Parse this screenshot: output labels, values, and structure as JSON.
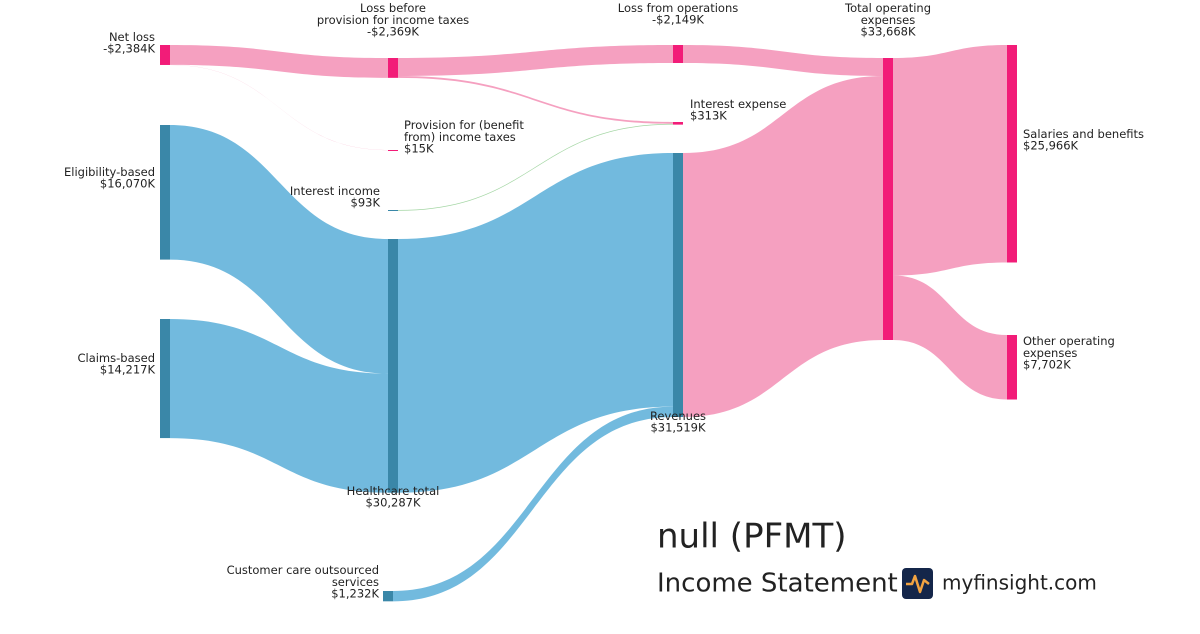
{
  "chart_data": {
    "type": "sankey",
    "title": "null (PFMT)",
    "subtitle": "Income Statement",
    "brand": "myfinsight.com",
    "nodes": [
      {
        "name": "Net loss",
        "value": -2384,
        "value_label": "-$2,384K",
        "color": "#f21c78"
      },
      {
        "name": "Eligibility-based",
        "value": 16070,
        "value_label": "$16,070K",
        "color": "#3a87a8"
      },
      {
        "name": "Claims-based",
        "value": 14217,
        "value_label": "$14,217K",
        "color": "#3a87a8"
      },
      {
        "name": "Loss before provision for income taxes",
        "value": -2369,
        "value_label": "-$2,369K",
        "color": "#f21c78"
      },
      {
        "name": "Provision for (benefit from) income taxes",
        "value": 15,
        "value_label": "$15K",
        "color": "#f21c78"
      },
      {
        "name": "Interest income",
        "value": 93,
        "value_label": "$93K",
        "color": "#3a87a8"
      },
      {
        "name": "Healthcare total",
        "value": 30287,
        "value_label": "$30,287K",
        "color": "#3a87a8"
      },
      {
        "name": "Customer care outsourced services",
        "value": 1232,
        "value_label": "$1,232K",
        "color": "#3a87a8"
      },
      {
        "name": "Loss from operations",
        "value": -2149,
        "value_label": "-$2,149K",
        "color": "#f21c78"
      },
      {
        "name": "Interest expense",
        "value": 313,
        "value_label": "$313K",
        "color": "#f21c78"
      },
      {
        "name": "Revenues",
        "value": 31519,
        "value_label": "$31,519K",
        "color": "#3a87a8"
      },
      {
        "name": "Total operating expenses",
        "value": 33668,
        "value_label": "$33,668K",
        "color": "#f21c78"
      },
      {
        "name": "Salaries and benefits",
        "value": 25966,
        "value_label": "$25,966K",
        "color": "#f21c78"
      },
      {
        "name": "Other operating expenses",
        "value": 7702,
        "value_label": "$7,702K",
        "color": "#f21c78"
      }
    ],
    "links": [
      {
        "source": 0,
        "target": 3,
        "value": 2369,
        "color": "#f49bbd"
      },
      {
        "source": 0,
        "target": 4,
        "value": 15,
        "color": "#f49bbd"
      },
      {
        "source": 3,
        "target": 8,
        "value": 2149,
        "color": "#f49bbd"
      },
      {
        "source": 3,
        "target": 9,
        "value": 220,
        "color": "#f49bbd"
      },
      {
        "source": 5,
        "target": 9,
        "value": 93,
        "color": "#9fd49f"
      },
      {
        "source": 1,
        "target": 6,
        "value": 16070,
        "color": "#6ab6dc"
      },
      {
        "source": 2,
        "target": 6,
        "value": 14217,
        "color": "#6ab6dc"
      },
      {
        "source": 8,
        "target": 11,
        "value": 2149,
        "color": "#f49bbd"
      },
      {
        "source": 6,
        "target": 10,
        "value": 30287,
        "color": "#6ab6dc"
      },
      {
        "source": 7,
        "target": 10,
        "value": 1232,
        "color": "#6ab6dc"
      },
      {
        "source": 10,
        "target": 11,
        "value": 31519,
        "color": "#f49bbd"
      },
      {
        "source": 11,
        "target": 12,
        "value": 25966,
        "color": "#f49bbd"
      },
      {
        "source": 11,
        "target": 13,
        "value": 7702,
        "color": "#f49bbd"
      }
    ]
  }
}
